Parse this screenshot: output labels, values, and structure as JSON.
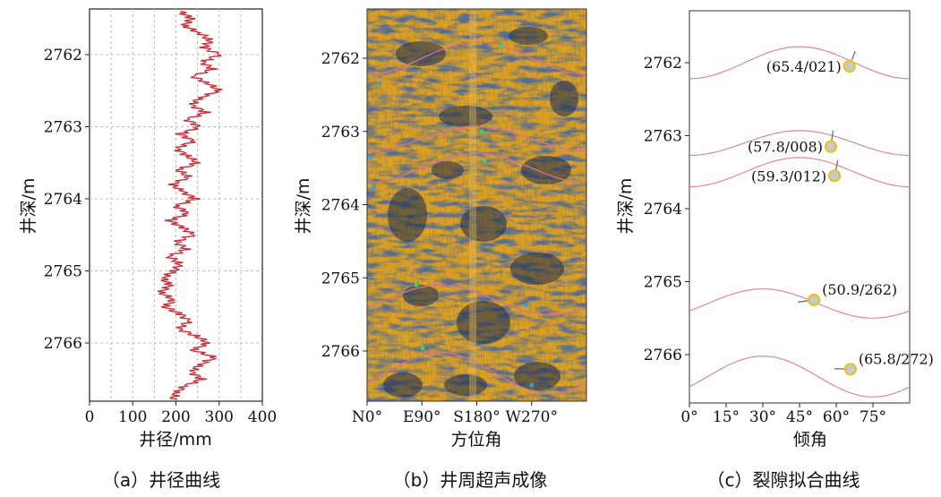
{
  "chart_data": [
    {
      "type": "line",
      "caption": "（a）井径曲线",
      "xlabel": "井径/mm",
      "ylabel": "井深/m",
      "xlim": [
        0,
        400
      ],
      "ylim": [
        2761.4,
        2766.8
      ],
      "xticks": [
        "0",
        "100",
        "200",
        "300",
        "400"
      ],
      "yticks": [
        "2762",
        "2763",
        "2764",
        "2765",
        "2766"
      ],
      "grid": true,
      "series": [
        {
          "color": "#c8323c",
          "depth": [
            2761.4,
            2761.5,
            2761.6,
            2761.7,
            2761.8,
            2761.9,
            2762.0,
            2762.1,
            2762.2,
            2762.3,
            2762.4,
            2762.5,
            2762.6,
            2762.7,
            2762.8,
            2762.9,
            2763.0,
            2763.1,
            2763.2,
            2763.3,
            2763.4,
            2763.5,
            2763.6,
            2763.7,
            2763.8,
            2763.9,
            2764.0,
            2764.1,
            2764.2,
            2764.3,
            2764.4,
            2764.5,
            2764.6,
            2764.7,
            2764.8,
            2764.9,
            2765.0,
            2765.1,
            2765.2,
            2765.3,
            2765.4,
            2765.5,
            2765.6,
            2765.7,
            2765.8,
            2765.9,
            2766.0,
            2766.1,
            2766.2,
            2766.3,
            2766.4,
            2766.5,
            2766.6,
            2766.7,
            2766.8
          ],
          "values": [
            210,
            235,
            220,
            255,
            280,
            265,
            300,
            260,
            285,
            240,
            275,
            300,
            255,
            235,
            270,
            225,
            255,
            210,
            240,
            200,
            225,
            250,
            205,
            230,
            190,
            215,
            245,
            200,
            230,
            185,
            215,
            240,
            200,
            225,
            185,
            210,
            195,
            170,
            185,
            165,
            195,
            175,
            210,
            230,
            205,
            245,
            275,
            240,
            290,
            255,
            235,
            260,
            220,
            200,
            190
          ]
        }
      ]
    },
    {
      "type": "heatmap",
      "caption": "（b）井周超声成像",
      "xlabel": "方位角",
      "ylabel": "井深/m",
      "xlim": [
        0,
        360
      ],
      "ylim": [
        2761.4,
        2766.8
      ],
      "xticks": [
        "N0°",
        "E90°",
        "S180°",
        "W270°"
      ],
      "yticks": [
        "2762",
        "2763",
        "2764",
        "2765",
        "2766"
      ],
      "colors": {
        "base": "#e2a21c",
        "dark": "#1c2c4e",
        "mid": "#7a5c22",
        "sine": "#d9709a",
        "dot_green": "#3fd46a",
        "dot_blue": "#2aa6e0"
      },
      "fractures": [
        {
          "depth": 2762.0,
          "amp": 0.22,
          "phase": 180
        },
        {
          "depth": 2763.1,
          "amp": 0.17,
          "phase": 180
        },
        {
          "depth": 2763.5,
          "amp": 0.2,
          "phase": 180
        },
        {
          "depth": 2765.3,
          "amp": 0.2,
          "phase": 120
        },
        {
          "depth": 2766.3,
          "amp": 0.28,
          "phase": 120
        }
      ]
    },
    {
      "type": "scatter",
      "caption": "（c）裂隙拟合曲线",
      "xlabel": "倾角",
      "ylabel": "井深/m",
      "xlim": [
        0,
        90
      ],
      "ylim": [
        2761.4,
        2766.8
      ],
      "xticks": [
        "0°",
        "15°",
        "30°",
        "45°",
        "60°",
        "75°"
      ],
      "yticks": [
        "2762",
        "2763",
        "2764",
        "2765",
        "2766"
      ],
      "grid": false,
      "colors": {
        "sine": "#d98a9a",
        "point_fill": "#c9c9c9",
        "point_ring": "#e3c52a",
        "tail": "#777777"
      },
      "points": [
        {
          "label": "(65.4/021)",
          "dip": 65.4,
          "azimuth": 21,
          "depth": 2762.05
        },
        {
          "label": "(57.8/008)",
          "dip": 57.8,
          "azimuth": 8,
          "depth": 2763.15
        },
        {
          "label": "(59.3/012)",
          "dip": 59.3,
          "azimuth": 12,
          "depth": 2763.55
        },
        {
          "label": "(50.9/262)",
          "dip": 50.9,
          "azimuth": 262,
          "depth": 2765.25
        },
        {
          "label": "(65.8/272)",
          "dip": 65.8,
          "azimuth": 272,
          "depth": 2766.2
        }
      ],
      "fractures": [
        {
          "depth": 2762.0,
          "amp": 0.22,
          "phase": 180
        },
        {
          "depth": 2763.1,
          "amp": 0.17,
          "phase": 180
        },
        {
          "depth": 2763.5,
          "amp": 0.2,
          "phase": 180
        },
        {
          "depth": 2765.3,
          "amp": 0.2,
          "phase": 120
        },
        {
          "depth": 2766.3,
          "amp": 0.28,
          "phase": 120
        }
      ]
    }
  ]
}
